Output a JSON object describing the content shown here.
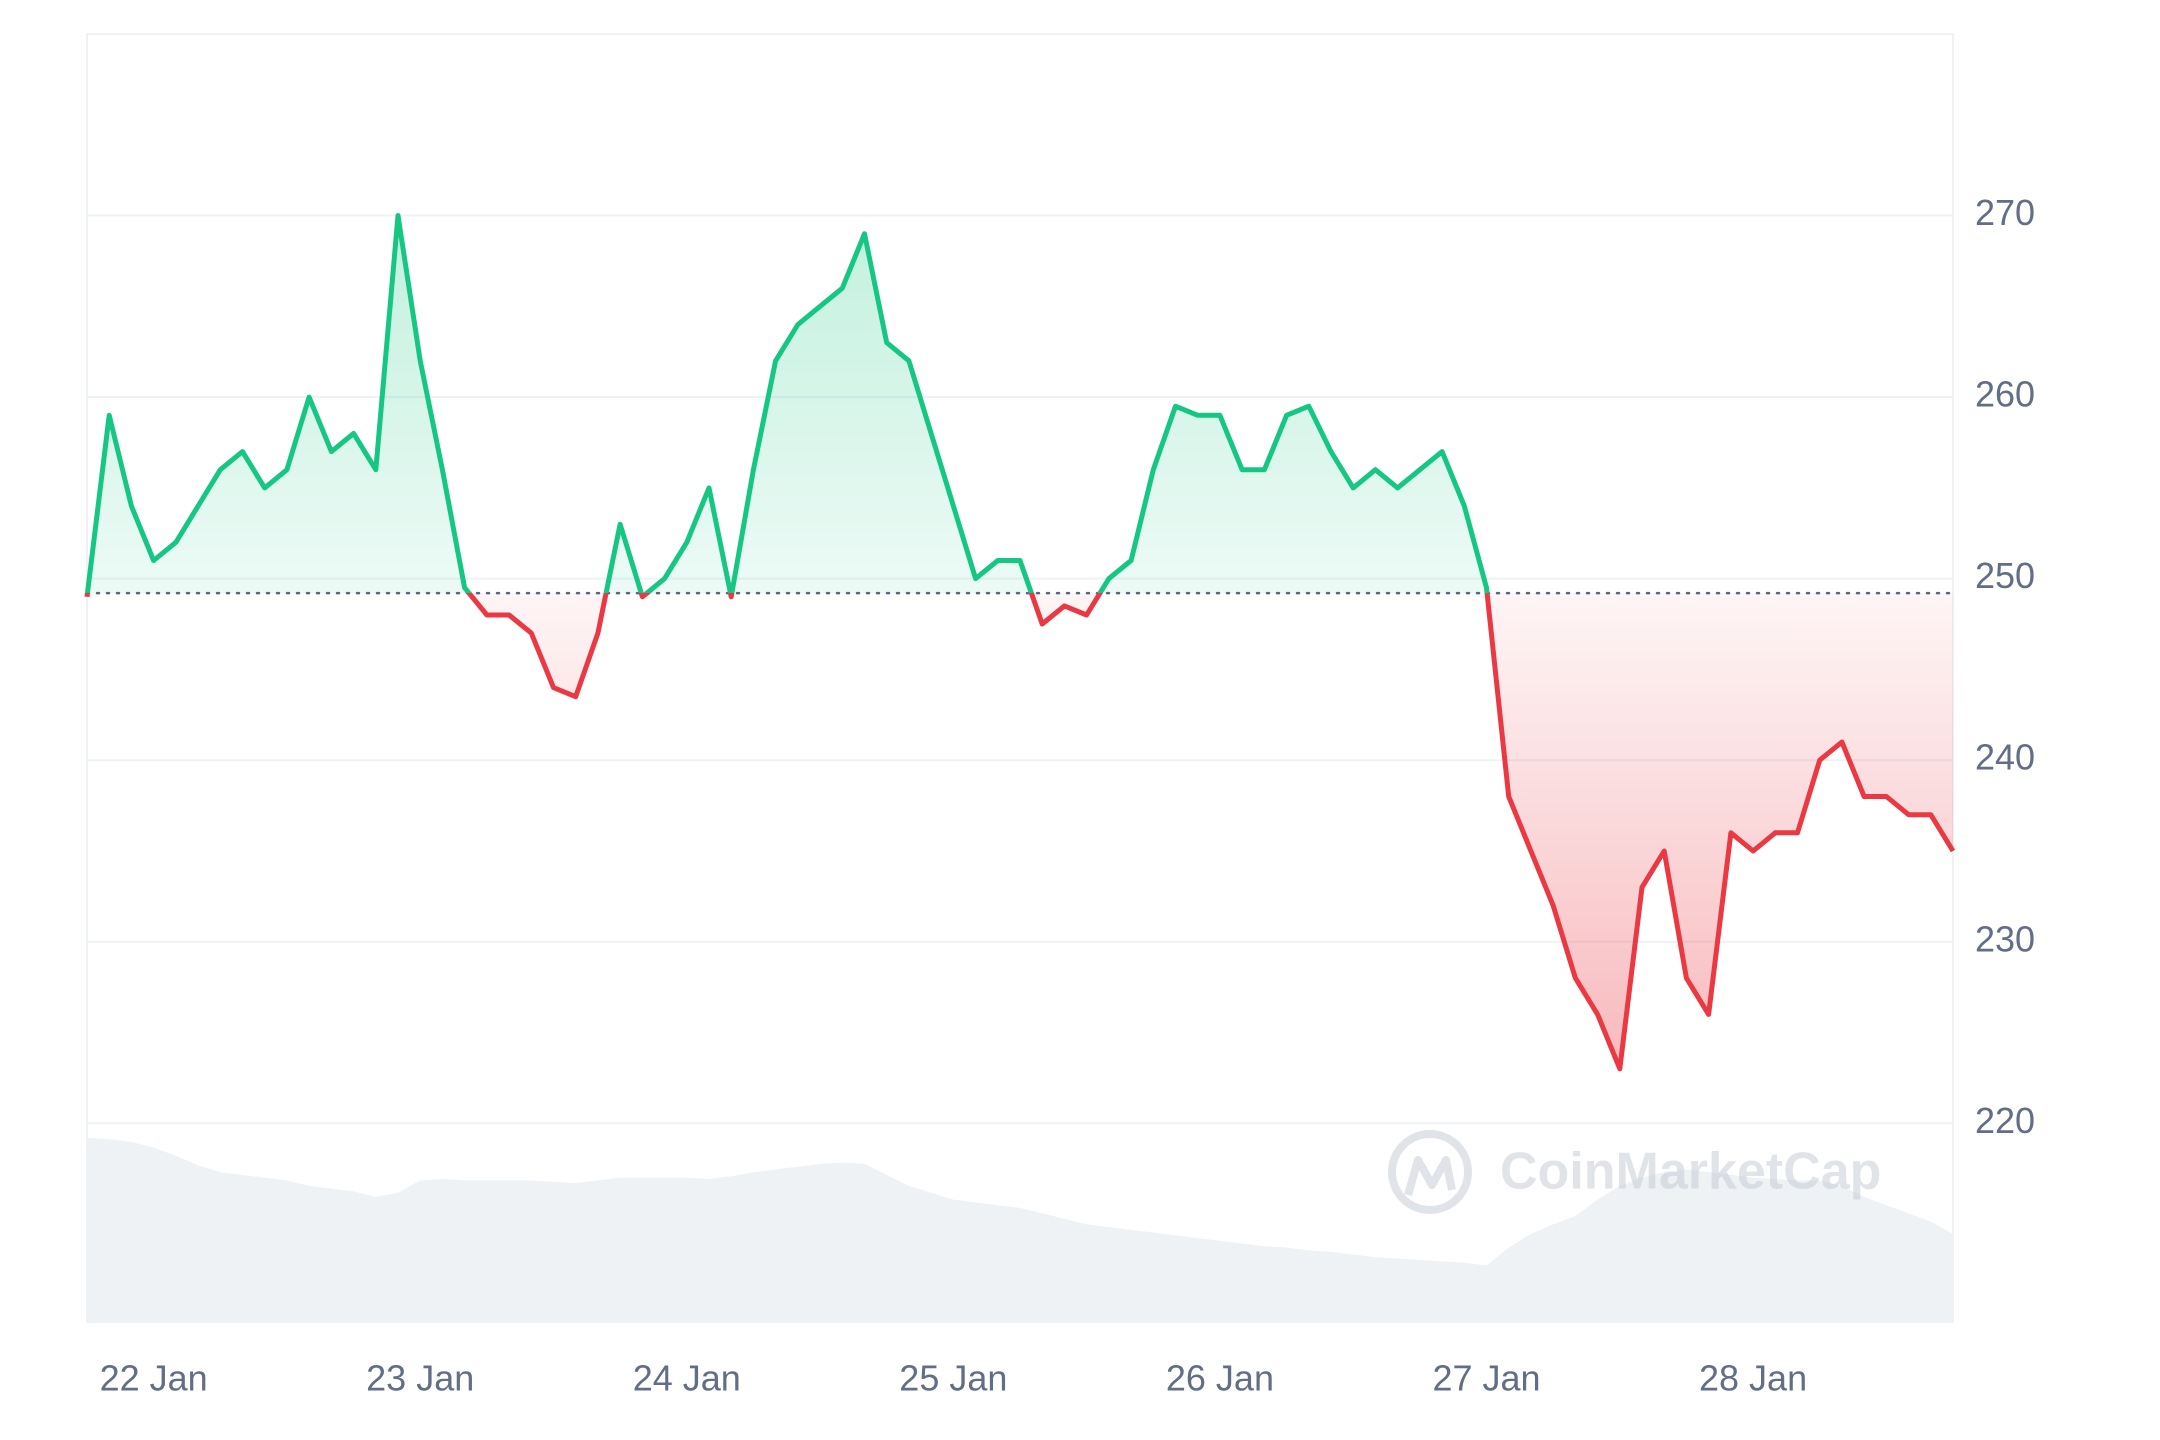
{
  "chart_data": {
    "type": "line",
    "categories": [
      null,
      null,
      null,
      "22 Jan",
      null,
      null,
      null,
      null,
      null,
      null,
      null,
      null,
      null,
      null,
      null,
      "23 Jan",
      null,
      null,
      null,
      null,
      null,
      null,
      null,
      null,
      null,
      null,
      null,
      "24 Jan",
      null,
      null,
      null,
      null,
      null,
      null,
      null,
      null,
      null,
      null,
      null,
      "25 Jan",
      null,
      null,
      null,
      null,
      null,
      null,
      null,
      null,
      null,
      null,
      null,
      "26 Jan",
      null,
      null,
      null,
      null,
      null,
      null,
      null,
      null,
      null,
      null,
      null,
      "27 Jan",
      null,
      null,
      null,
      null,
      null,
      null,
      null,
      null,
      null,
      null,
      null,
      "28 Jan",
      null,
      null,
      null,
      null,
      null,
      null,
      null,
      null,
      null
    ],
    "values": [
      249,
      259,
      254,
      251,
      252,
      254,
      256,
      257,
      255,
      256,
      260,
      257,
      258,
      256,
      270,
      262,
      256,
      249.5,
      248,
      248,
      247,
      244,
      243.5,
      247,
      253,
      249,
      250,
      252,
      255,
      249,
      256,
      262,
      264,
      265,
      266,
      269,
      263,
      262,
      258,
      254,
      250,
      251,
      251,
      247.5,
      248.5,
      248,
      250,
      251,
      256,
      259.5,
      259,
      259,
      256,
      256,
      259,
      259.5,
      257,
      255,
      256,
      255,
      256,
      257,
      254,
      249.5,
      238,
      235,
      232,
      228,
      226,
      223,
      233,
      235,
      228,
      226,
      236,
      235,
      236,
      236,
      240,
      241,
      238,
      238,
      237,
      237,
      235
    ],
    "baseline": 249.2,
    "up_color": "#16c784",
    "down_color": "#ea3943",
    "volume": {
      "color": "#eff2f5",
      "vlim": [
        0,
        940
      ],
      "values": [
        135,
        134,
        132,
        128,
        122,
        115,
        110,
        108,
        106,
        104,
        100,
        98,
        96,
        92,
        95,
        104,
        105,
        104,
        104,
        104,
        104,
        103,
        102,
        104,
        106,
        106,
        106,
        106,
        105,
        107,
        110,
        112,
        114,
        116,
        117,
        116,
        108,
        100,
        95,
        90,
        88,
        86,
        84,
        80,
        76,
        72,
        70,
        68,
        66,
        64,
        62,
        60,
        58,
        56,
        55,
        53,
        52,
        50,
        48,
        47,
        46,
        45,
        44,
        42,
        55,
        65,
        72,
        78,
        90,
        100,
        106,
        110,
        112,
        110,
        108,
        106,
        105,
        104,
        104,
        100,
        92,
        86,
        80,
        74,
        65
      ]
    },
    "ylim": [
      209,
      280
    ],
    "yticks": [
      220,
      230,
      240,
      250,
      260,
      270
    ],
    "grid": true,
    "watermark": "CoinMarketCap"
  }
}
